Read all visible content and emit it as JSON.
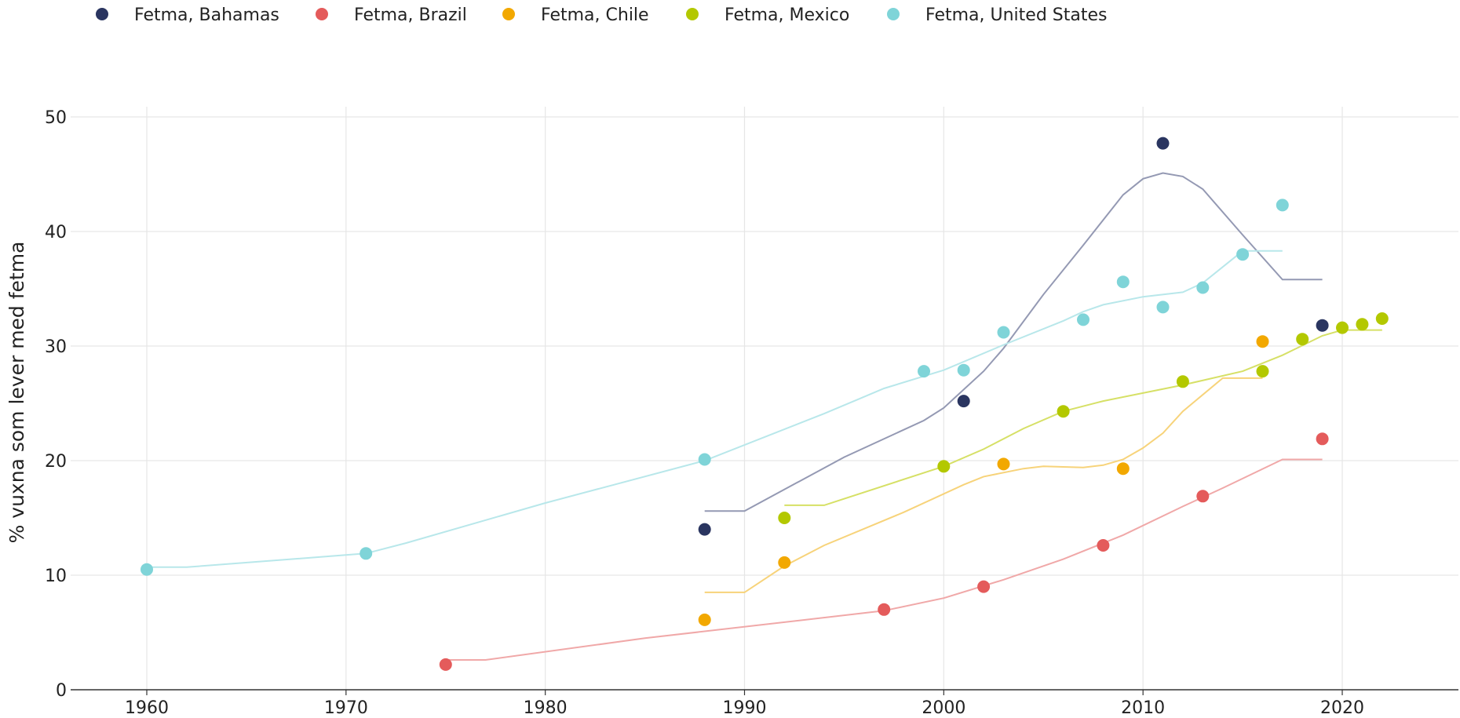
{
  "chart_data": {
    "type": "scatter",
    "ylabel": "% vuxna som lever med fetma",
    "xlabel": "",
    "xlim": [
      1956,
      2026
    ],
    "ylim": [
      0,
      50
    ],
    "xticks": [
      "1960",
      "1970",
      "1980",
      "1990",
      "2000",
      "2010",
      "2020"
    ],
    "yticks": [
      "0",
      "10",
      "20",
      "30",
      "40",
      "50"
    ],
    "grid": true,
    "legend_position": "top-left",
    "series": [
      {
        "name": "Fetma, Bahamas",
        "color": "#2a3560",
        "line_color": "#9499b3",
        "points": [
          [
            1988,
            14.0
          ],
          [
            2001,
            25.2
          ],
          [
            2011,
            47.7
          ],
          [
            2019,
            31.8
          ]
        ],
        "trend": [
          [
            1988,
            15.6
          ],
          [
            1990,
            15.6
          ],
          [
            1995,
            20.3
          ],
          [
            1999,
            23.5
          ],
          [
            2000,
            24.6
          ],
          [
            2002,
            27.8
          ],
          [
            2003,
            29.8
          ],
          [
            2005,
            34.5
          ],
          [
            2007,
            38.8
          ],
          [
            2009,
            43.2
          ],
          [
            2010,
            44.6
          ],
          [
            2011,
            45.1
          ],
          [
            2012,
            44.8
          ],
          [
            2013,
            43.7
          ],
          [
            2015,
            39.7
          ],
          [
            2017,
            35.8
          ],
          [
            2019,
            35.8
          ]
        ]
      },
      {
        "name": "Fetma, Brazil",
        "color": "#e45b5b",
        "line_color": "#f0a8a8",
        "points": [
          [
            1975,
            2.2
          ],
          [
            1997,
            7.0
          ],
          [
            2002,
            9.0
          ],
          [
            2008,
            12.6
          ],
          [
            2013,
            16.9
          ],
          [
            2019,
            21.9
          ]
        ],
        "trend": [
          [
            1975,
            2.6
          ],
          [
            1977,
            2.6
          ],
          [
            1985,
            4.5
          ],
          [
            1997,
            6.9
          ],
          [
            2000,
            8.0
          ],
          [
            2003,
            9.6
          ],
          [
            2006,
            11.4
          ],
          [
            2009,
            13.5
          ],
          [
            2012,
            16.0
          ],
          [
            2014,
            17.6
          ],
          [
            2017,
            20.1
          ],
          [
            2019,
            20.1
          ]
        ]
      },
      {
        "name": "Fetma, Chile",
        "color": "#f2a800",
        "line_color": "#f7d37a",
        "points": [
          [
            1988,
            6.1
          ],
          [
            1992,
            11.1
          ],
          [
            2003,
            19.7
          ],
          [
            2009,
            19.3
          ],
          [
            2016,
            30.4
          ]
        ],
        "trend": [
          [
            1988,
            8.5
          ],
          [
            1990,
            8.5
          ],
          [
            1992,
            10.8
          ],
          [
            1994,
            12.6
          ],
          [
            1998,
            15.5
          ],
          [
            2001,
            17.9
          ],
          [
            2002,
            18.6
          ],
          [
            2004,
            19.3
          ],
          [
            2005,
            19.5
          ],
          [
            2007,
            19.4
          ],
          [
            2008,
            19.6
          ],
          [
            2009,
            20.1
          ],
          [
            2010,
            21.1
          ],
          [
            2011,
            22.4
          ],
          [
            2012,
            24.3
          ],
          [
            2014,
            27.2
          ],
          [
            2016,
            27.2
          ]
        ]
      },
      {
        "name": "Fetma, Mexico",
        "color": "#b3c800",
        "line_color": "#d6e066",
        "points": [
          [
            1992,
            15.0
          ],
          [
            2000,
            19.5
          ],
          [
            2006,
            24.3
          ],
          [
            2012,
            26.9
          ],
          [
            2016,
            27.8
          ],
          [
            2018,
            30.6
          ],
          [
            2020,
            31.6
          ],
          [
            2021,
            31.9
          ],
          [
            2022,
            32.4
          ]
        ],
        "trend": [
          [
            1992,
            16.1
          ],
          [
            1994,
            16.1
          ],
          [
            2000,
            19.5
          ],
          [
            2002,
            21.0
          ],
          [
            2004,
            22.8
          ],
          [
            2006,
            24.3
          ],
          [
            2008,
            25.2
          ],
          [
            2012,
            26.6
          ],
          [
            2015,
            27.8
          ],
          [
            2017,
            29.2
          ],
          [
            2019,
            30.9
          ],
          [
            2020,
            31.4
          ],
          [
            2022,
            31.4
          ]
        ]
      },
      {
        "name": "Fetma, United States",
        "color": "#7fd4d8",
        "line_color": "#b8e7ea",
        "points": [
          [
            1960,
            10.5
          ],
          [
            1971,
            11.9
          ],
          [
            1988,
            20.1
          ],
          [
            1999,
            27.8
          ],
          [
            2001,
            27.9
          ],
          [
            2003,
            31.2
          ],
          [
            2007,
            32.3
          ],
          [
            2009,
            35.6
          ],
          [
            2011,
            33.4
          ],
          [
            2013,
            35.1
          ],
          [
            2015,
            38.0
          ],
          [
            2017,
            42.3
          ]
        ],
        "trend": [
          [
            1960,
            10.7
          ],
          [
            1962,
            10.7
          ],
          [
            1971,
            11.9
          ],
          [
            1973,
            12.8
          ],
          [
            1980,
            16.3
          ],
          [
            1988,
            20.0
          ],
          [
            1994,
            24.1
          ],
          [
            1997,
            26.3
          ],
          [
            2000,
            27.9
          ],
          [
            2003,
            30.1
          ],
          [
            2006,
            32.2
          ],
          [
            2007,
            33.0
          ],
          [
            2008,
            33.6
          ],
          [
            2010,
            34.3
          ],
          [
            2012,
            34.7
          ],
          [
            2013,
            35.5
          ],
          [
            2015,
            38.3
          ],
          [
            2017,
            38.3
          ]
        ]
      }
    ]
  }
}
